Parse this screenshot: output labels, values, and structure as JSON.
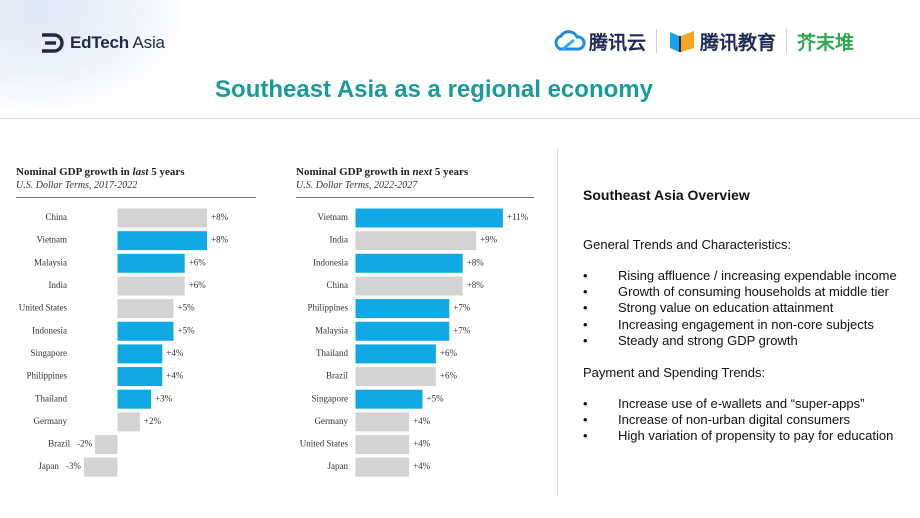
{
  "header": {
    "logo_text_bold": "EdTech",
    "logo_text_light": " Asia",
    "partner1": "腾讯云",
    "partner2": "腾讯教育",
    "partner3": "芥末堆",
    "colors": {
      "title": "#1a9a9a",
      "navy": "#1f2a44"
    }
  },
  "page_title": "Southeast Asia as a regional economy",
  "chart_data": [
    {
      "type": "bar",
      "orientation": "horizontal",
      "title_prefix": "Nominal GDP growth in ",
      "title_em": "last",
      "title_suffix": " 5 years",
      "subtitle": "U.S. Dollar Terms, 2017-2022",
      "categories": [
        "China",
        "Vietnam",
        "Malaysia",
        "India",
        "United States",
        "Indonesia",
        "Singapore",
        "Philippines",
        "Thailand",
        "Germany",
        "Brazil",
        "Japan"
      ],
      "values": [
        8,
        8,
        6,
        6,
        5,
        5,
        4,
        4,
        3,
        2,
        -2,
        -3
      ],
      "labels": [
        "+8%",
        "+8%",
        "+6%",
        "+6%",
        "+5%",
        "+5%",
        "+4%",
        "+4%",
        "+3%",
        "+2%",
        "-2%",
        "-3%"
      ],
      "highlight": [
        false,
        true,
        true,
        false,
        false,
        true,
        true,
        true,
        true,
        false,
        false,
        false
      ],
      "colors": {
        "highlight": "#10a9e6",
        "default": "#d3d3d3"
      }
    },
    {
      "type": "bar",
      "orientation": "horizontal",
      "title_prefix": "Nominal GDP growth in ",
      "title_em": "next",
      "title_suffix": " 5 years",
      "subtitle": "U.S. Dollar Terms, 2022-2027",
      "categories": [
        "Vietnam",
        "India",
        "Indonesia",
        "China",
        "Philippines",
        "Malaysia",
        "Thailand",
        "Brazil",
        "Singapore",
        "Germany",
        "United States",
        "Japan"
      ],
      "values": [
        11,
        9,
        8,
        8,
        7,
        7,
        6,
        6,
        5,
        4,
        4,
        4
      ],
      "labels": [
        "+11%",
        "+9%",
        "+8%",
        "+8%",
        "+7%",
        "+7%",
        "+6%",
        "+6%",
        "+5%",
        "+4%",
        "+4%",
        "+4%"
      ],
      "highlight": [
        true,
        false,
        true,
        false,
        true,
        true,
        true,
        false,
        true,
        false,
        false,
        false
      ],
      "colors": {
        "highlight": "#10a9e6",
        "default": "#d3d3d3"
      }
    }
  ],
  "overview": {
    "title": "Southeast Asia Overview",
    "general_heading": "General Trends and Characteristics:",
    "general_items": [
      "Rising affluence / increasing expendable income",
      "Growth of consuming households at middle tier",
      "Strong value on education attainment",
      "Increasing engagement in non-core subjects",
      "Steady and strong GDP growth"
    ],
    "payment_heading": "Payment and Spending Trends:",
    "payment_items": [
      "Increase use of e-wallets and “super-apps”",
      "Increase of non-urban digital consumers",
      "High variation of propensity to pay for education"
    ],
    "bullet": "•"
  }
}
